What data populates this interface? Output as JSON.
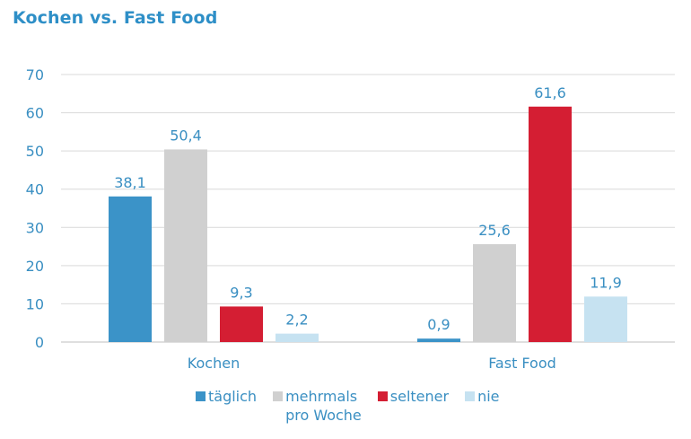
{
  "title": "Kochen vs. Fast Food",
  "chart_data": {
    "type": "bar",
    "categories": [
      "Kochen",
      "Fast Food"
    ],
    "series": [
      {
        "name": "täglich",
        "color": "#3b93c8",
        "values": [
          38.1,
          0.9
        ],
        "labels": [
          "38,1",
          "0,9"
        ]
      },
      {
        "name": "mehrmals\npro Woche",
        "color": "#d0d0d0",
        "values": [
          50.4,
          25.6
        ],
        "labels": [
          "50,4",
          "25,6"
        ]
      },
      {
        "name": "seltener",
        "color": "#d41e33",
        "values": [
          9.3,
          61.6
        ],
        "labels": [
          "9,3",
          "61,6"
        ]
      },
      {
        "name": "nie",
        "color": "#c6e2f1",
        "values": [
          2.2,
          11.9
        ],
        "labels": [
          "2,2",
          "11,9"
        ]
      }
    ],
    "yticks": [
      0,
      10,
      20,
      30,
      40,
      50,
      60,
      70
    ],
    "ylim": [
      0,
      70
    ],
    "grid": true,
    "legend": "bottom"
  }
}
